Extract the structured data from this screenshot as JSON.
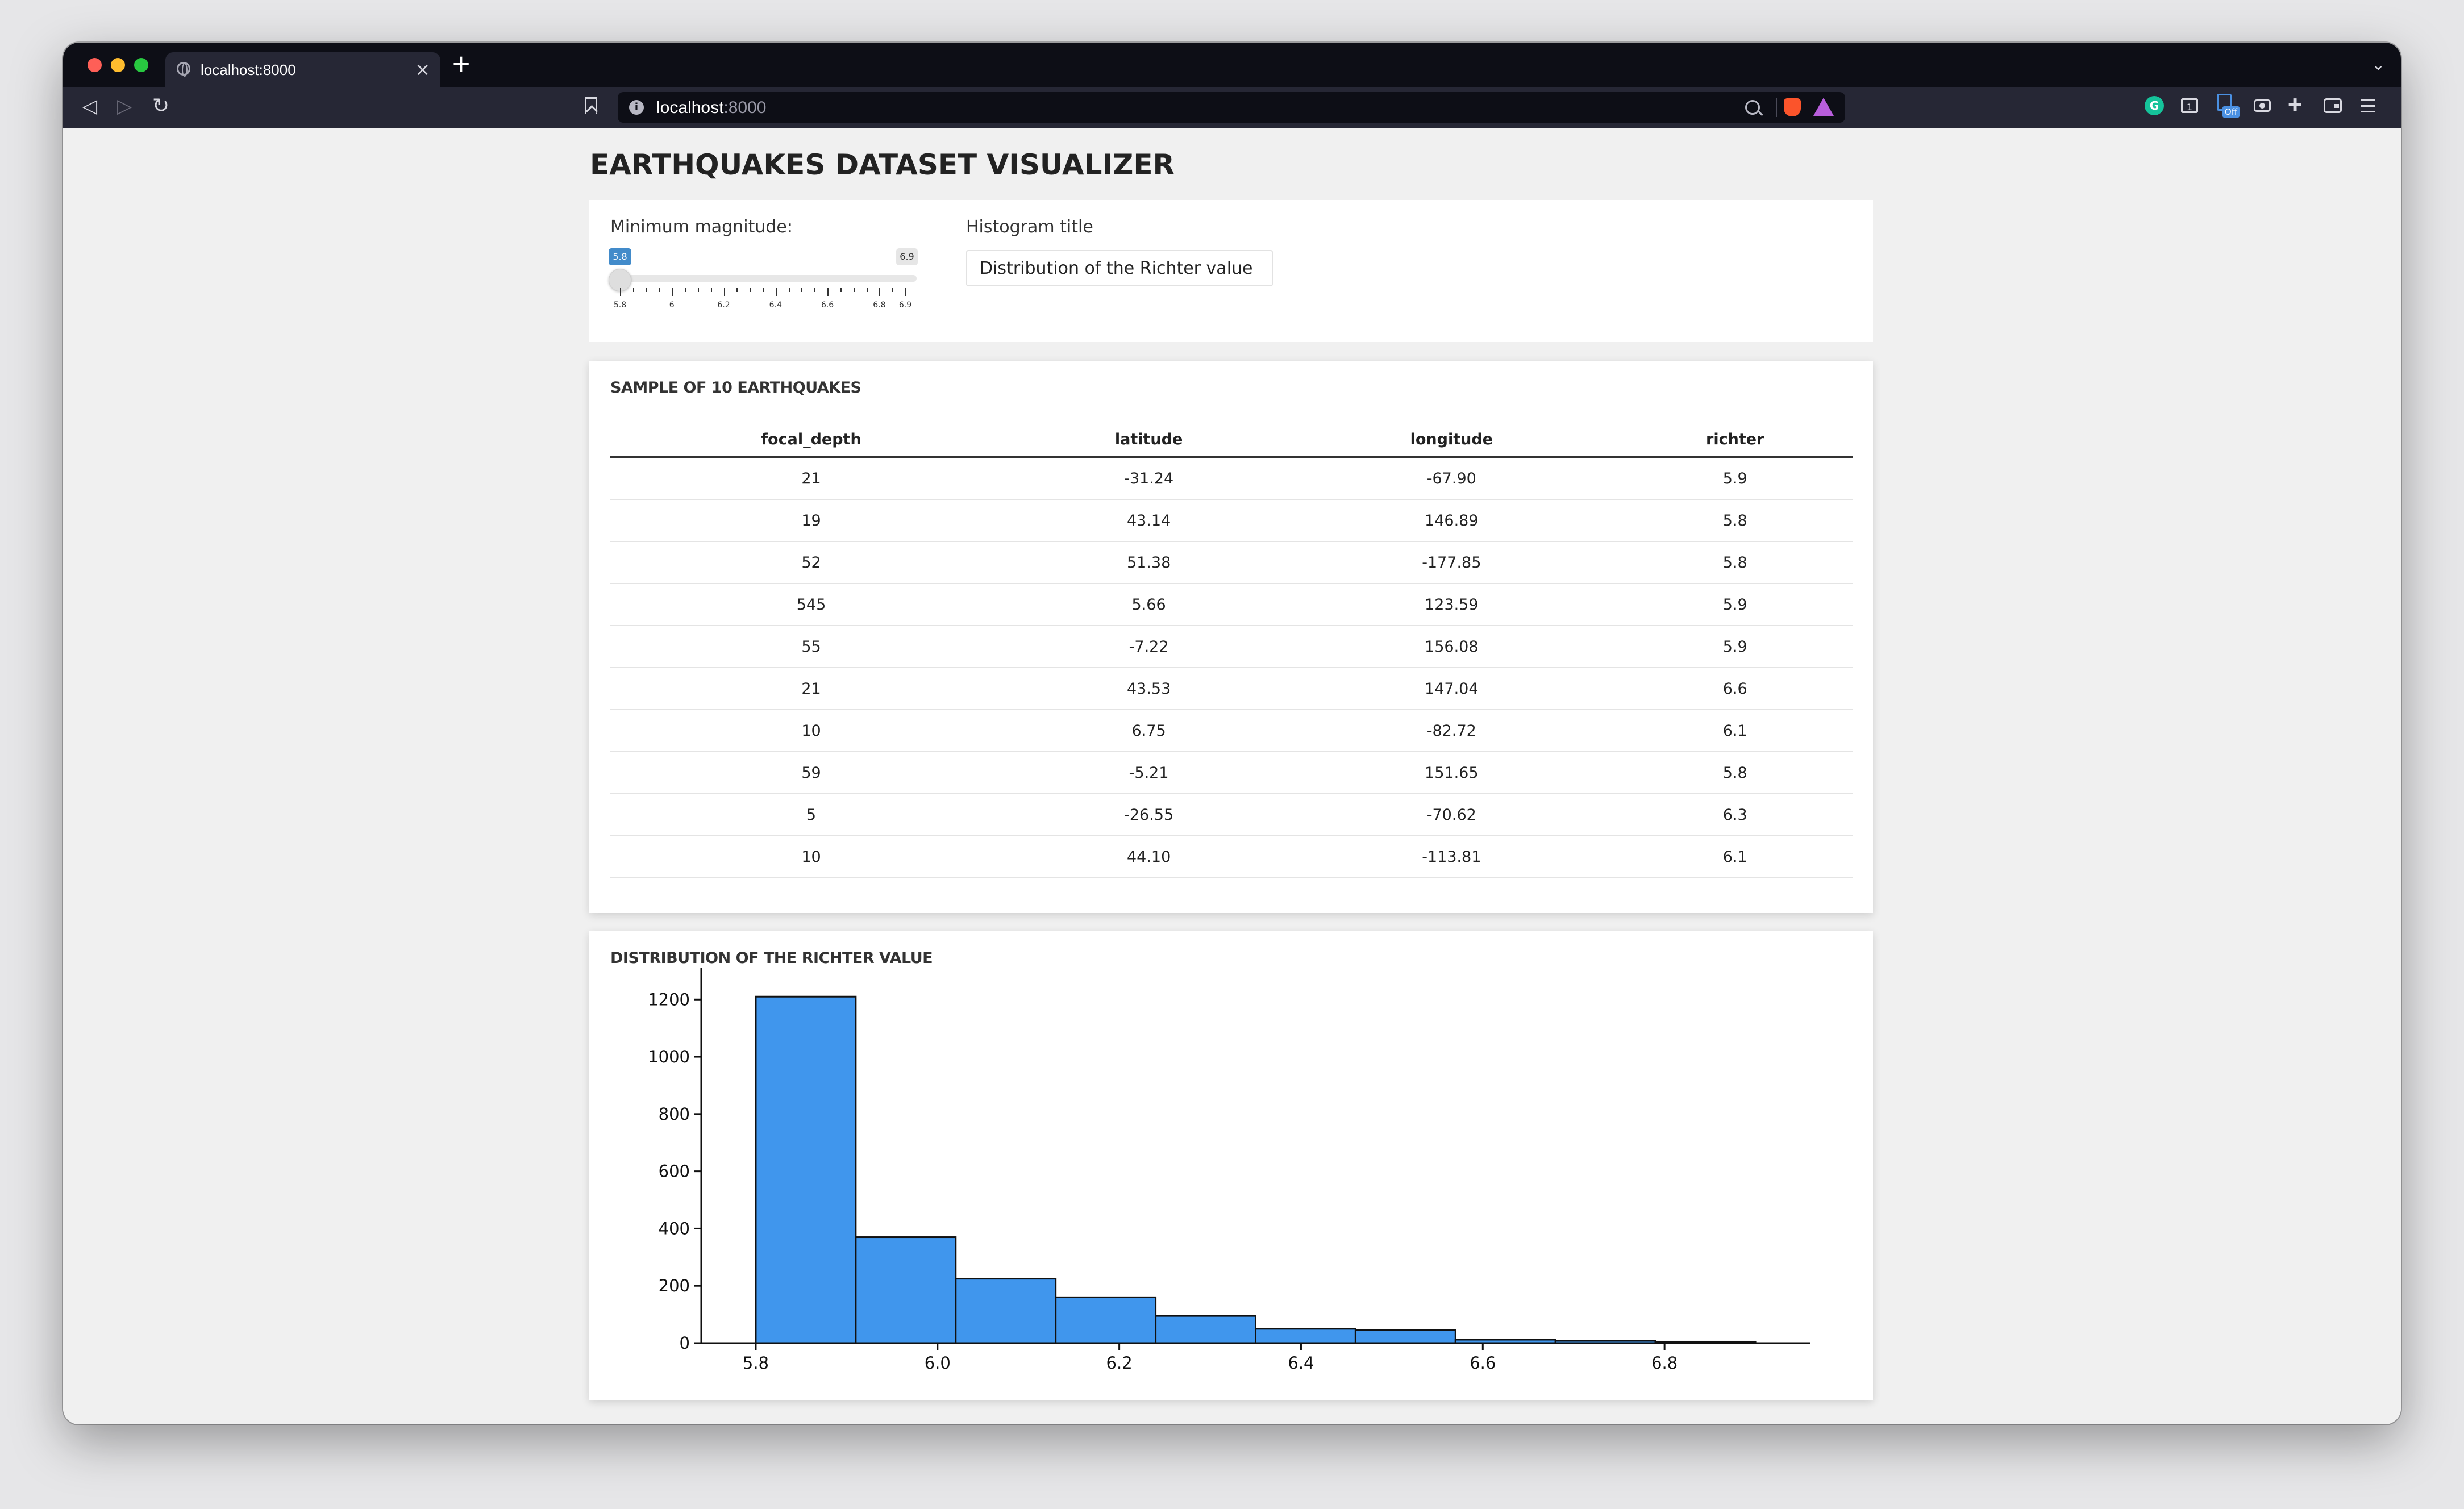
{
  "browser": {
    "tab_title": "localhost:8000",
    "url_host": "localhost",
    "url_port": ":8000",
    "extension_badge_1": "1",
    "extension_badge_off": "Off"
  },
  "page": {
    "title": "EARTHQUAKES DATASET VISUALIZER"
  },
  "controls": {
    "min_magnitude_label": "Minimum magnitude:",
    "slider": {
      "min": 5.8,
      "max": 6.9,
      "value": 5.8,
      "value_label": "5.8",
      "max_label": "6.9",
      "tick_labels": [
        "5.8",
        "6",
        "6.2",
        "6.4",
        "6.6",
        "6.8",
        "6.9"
      ],
      "tick_values": [
        5.8,
        6.0,
        6.2,
        6.4,
        6.6,
        6.8,
        6.9
      ]
    },
    "histogram_title_label": "Histogram title",
    "histogram_title_value": "Distribution of the Richter value"
  },
  "table": {
    "title": "SAMPLE OF 10 EARTHQUAKES",
    "columns": [
      "focal_depth",
      "latitude",
      "longitude",
      "richter"
    ],
    "rows": [
      [
        "21",
        "-31.24",
        "-67.90",
        "5.9"
      ],
      [
        "19",
        "43.14",
        "146.89",
        "5.8"
      ],
      [
        "52",
        "51.38",
        "-177.85",
        "5.8"
      ],
      [
        "545",
        "5.66",
        "123.59",
        "5.9"
      ],
      [
        "55",
        "-7.22",
        "156.08",
        "5.9"
      ],
      [
        "21",
        "43.53",
        "147.04",
        "6.6"
      ],
      [
        "10",
        "6.75",
        "-82.72",
        "6.1"
      ],
      [
        "59",
        "-5.21",
        "151.65",
        "5.8"
      ],
      [
        "5",
        "-26.55",
        "-70.62",
        "6.3"
      ],
      [
        "10",
        "44.10",
        "-113.81",
        "6.1"
      ]
    ]
  },
  "chart": {
    "title": "DISTRIBUTION OF THE RICHTER VALUE",
    "bar_color": "#4096ed"
  },
  "chart_data": {
    "type": "bar",
    "title": "DISTRIBUTION OF THE RICHTER VALUE",
    "xlabel": "",
    "ylabel": "",
    "bin_edges": [
      5.8,
      5.91,
      6.02,
      6.13,
      6.24,
      6.35,
      6.46,
      6.57,
      6.68,
      6.79,
      6.9
    ],
    "values": [
      1210,
      370,
      225,
      160,
      95,
      50,
      45,
      12,
      8,
      5
    ],
    "xlim": [
      5.74,
      6.96
    ],
    "ylim": [
      0,
      1270
    ],
    "x_ticks": [
      5.8,
      6.0,
      6.2,
      6.4,
      6.6,
      6.8
    ],
    "x_tick_labels": [
      "5.8",
      "6.0",
      "6.2",
      "6.4",
      "6.6",
      "6.8"
    ],
    "y_ticks": [
      0,
      200,
      400,
      600,
      800,
      1000,
      1200
    ],
    "y_tick_labels": [
      "0",
      "200",
      "400",
      "600",
      "800",
      "1000",
      "1200"
    ],
    "grid": false,
    "legend": "none"
  }
}
